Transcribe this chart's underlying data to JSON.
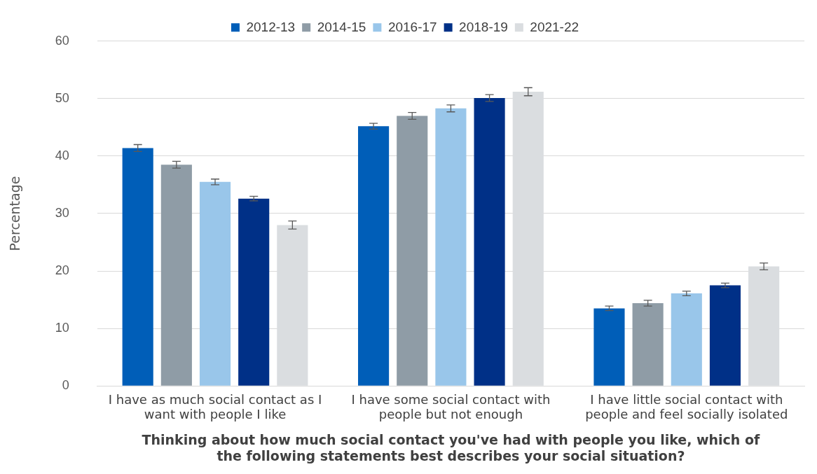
{
  "chart_data": {
    "type": "bar",
    "xlabel": "Thinking about how much social contact you've had with people you like, which of the following statements best describes your social situation?",
    "ylabel": "Percentage",
    "categories": [
      "I have as much social contact as I want with people I like",
      "I have some social contact with people but not enough",
      "I have little social contact with people and feel socially isolated"
    ],
    "series": [
      {
        "name": "2012-13",
        "color": "#005eb8",
        "values": [
          41.4,
          45.2,
          13.5
        ],
        "errors": [
          0.6,
          0.5,
          0.4
        ]
      },
      {
        "name": "2014-15",
        "color": "#8f9ca6",
        "values": [
          38.5,
          47.0,
          14.4
        ],
        "errors": [
          0.6,
          0.6,
          0.5
        ]
      },
      {
        "name": "2016-17",
        "color": "#99c6ea",
        "values": [
          35.5,
          48.3,
          16.1
        ],
        "errors": [
          0.5,
          0.6,
          0.4
        ]
      },
      {
        "name": "2018-19",
        "color": "#003087",
        "values": [
          32.6,
          50.1,
          17.5
        ],
        "errors": [
          0.4,
          0.6,
          0.4
        ]
      },
      {
        "name": "2021-22",
        "color": "#dadde0",
        "values": [
          28.0,
          51.2,
          20.8
        ],
        "errors": [
          0.7,
          0.7,
          0.6
        ]
      }
    ],
    "ylim": [
      0,
      60
    ],
    "yticks": [
      0,
      10,
      20,
      30,
      40,
      50,
      60
    ],
    "grid": "y",
    "legend": "top"
  }
}
